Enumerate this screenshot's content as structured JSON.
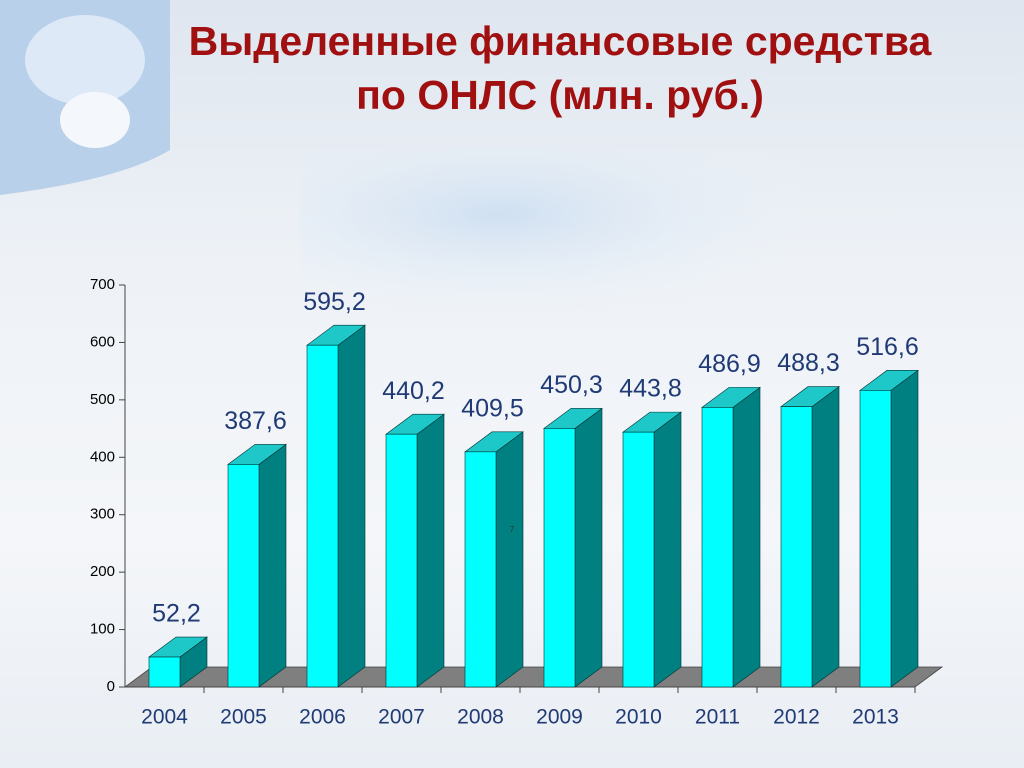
{
  "chart_data": {
    "type": "bar3d",
    "title": "Выделенные финансовые средства по ОНЛС (млн. руб.)",
    "categories": [
      "2004",
      "2005",
      "2006",
      "2007",
      "2008",
      "2009",
      "2010",
      "2011",
      "2012",
      "2013"
    ],
    "values": [
      52.2,
      387.6,
      595.2,
      440.2,
      409.5,
      450.3,
      443.8,
      486.9,
      488.3,
      516.6
    ],
    "value_labels": [
      "52,2",
      "387,6",
      "595,2",
      "440,2",
      "409,5",
      "450,3",
      "443,8",
      "486,9",
      "488,3",
      "516,6"
    ],
    "color": "#00ffff",
    "top_color": "#1fc8c8",
    "side_color": "#008080",
    "floor_color": "#7f7f7f",
    "ylim": [
      0,
      700
    ],
    "yticks": [
      0,
      100,
      200,
      300,
      400,
      500,
      600,
      700
    ],
    "annotation": "7"
  }
}
